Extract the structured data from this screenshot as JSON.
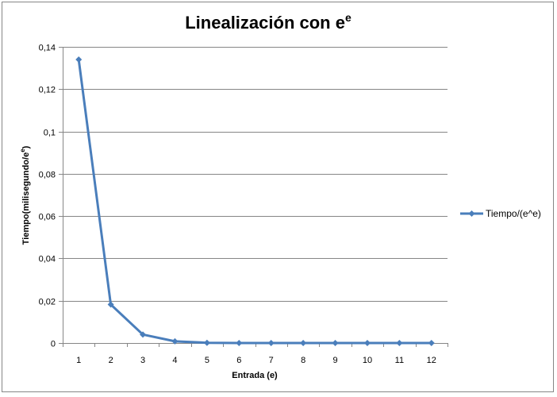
{
  "chart_data": {
    "type": "line",
    "title": "Linealización con e",
    "title_superscript": "e",
    "xlabel": "Entrada (e)",
    "ylabel": "Tiempo(milisegundo/e",
    "ylabel_superscript": "e",
    "ylabel_suffix": ")",
    "categories": [
      "1",
      "2",
      "3",
      "4",
      "5",
      "6",
      "7",
      "8",
      "9",
      "10",
      "11",
      "12"
    ],
    "series": [
      {
        "name": "Tiempo/(e^e)",
        "color": "#4a7ebb",
        "values": [
          0.134,
          0.0182,
          0.004,
          0.0008,
          0.0001,
          0.0,
          0.0,
          0.0,
          0.0,
          0.0,
          0.0,
          0.0
        ]
      }
    ],
    "ylim": [
      0,
      0.14
    ],
    "yticks": [
      0,
      0.02,
      0.04,
      0.06,
      0.08,
      0.1,
      0.12,
      0.14
    ],
    "ytick_labels": [
      "0",
      "0,02",
      "0,04",
      "0,06",
      "0,08",
      "0,1",
      "0,12",
      "0,14"
    ],
    "grid": "horizontal",
    "legend_position": "right",
    "marker": "diamond"
  }
}
